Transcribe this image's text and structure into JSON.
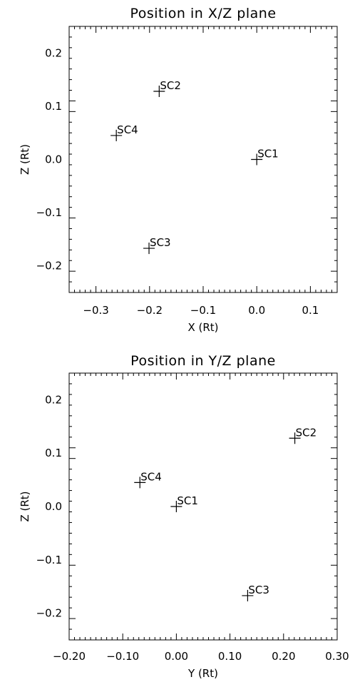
{
  "chart_data": [
    {
      "type": "scatter",
      "title": "Position in X/Z plane",
      "xlabel": "X (Rt)",
      "ylabel": "Z (Rt)",
      "xlim": [
        -0.35,
        0.15
      ],
      "ylim": [
        -0.25,
        0.25
      ],
      "x_ticks": [
        -0.3,
        -0.2,
        -0.1,
        0.0,
        0.1
      ],
      "x_tick_labels": [
        "−0.3",
        "−0.2",
        "−0.1",
        "0.0",
        "0.1"
      ],
      "y_ticks": [
        0.2,
        0.1,
        0.0,
        -0.1,
        -0.2
      ],
      "y_tick_labels": [
        "0.2",
        "0.1",
        "0.0",
        "−0.1",
        "−0.2"
      ],
      "grid": false,
      "marker": "+",
      "points": [
        {
          "label": "SC1",
          "x": 0.0,
          "y": 0.0
        },
        {
          "label": "SC2",
          "x": -0.182,
          "y": 0.128
        },
        {
          "label": "SC3",
          "x": -0.201,
          "y": -0.167
        },
        {
          "label": "SC4",
          "x": -0.262,
          "y": 0.045
        }
      ]
    },
    {
      "type": "scatter",
      "title": "Position in Y/Z plane",
      "xlabel": "Y (Rt)",
      "ylabel": "Z (Rt)",
      "xlim": [
        -0.2,
        0.3
      ],
      "ylim": [
        -0.25,
        0.25
      ],
      "x_ticks": [
        -0.2,
        -0.1,
        0.0,
        0.1,
        0.2,
        0.3
      ],
      "x_tick_labels": [
        "−0.20",
        "−0.10",
        "0.00",
        "0.10",
        "0.20",
        "0.30"
      ],
      "y_ticks": [
        0.2,
        0.1,
        0.0,
        -0.1,
        -0.2
      ],
      "y_tick_labels": [
        "0.2",
        "0.1",
        "0.0",
        "−0.1",
        "−0.2"
      ],
      "grid": false,
      "marker": "+",
      "points": [
        {
          "label": "SC1",
          "x": 0.0,
          "y": 0.0
        },
        {
          "label": "SC2",
          "x": 0.221,
          "y": 0.128
        },
        {
          "label": "SC3",
          "x": 0.133,
          "y": -0.167
        },
        {
          "label": "SC4",
          "x": -0.068,
          "y": 0.045
        }
      ]
    }
  ]
}
